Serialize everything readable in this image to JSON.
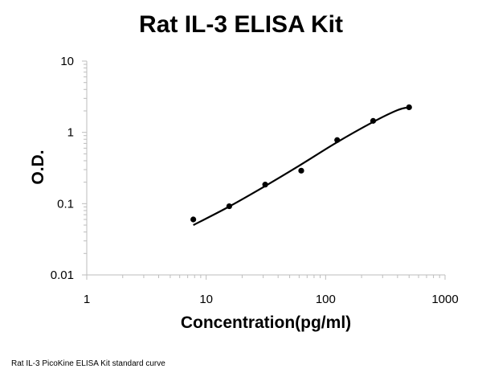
{
  "chart_data": {
    "type": "scatter",
    "title": "Rat IL-3 ELISA Kit",
    "xlabel": "Concentration(pg/ml)",
    "ylabel": "O.D.",
    "xscale": "log",
    "yscale": "log",
    "xlim": [
      1,
      1000
    ],
    "ylim": [
      0.01,
      10
    ],
    "xticks": [
      "1",
      "10",
      "100",
      "1000"
    ],
    "yticks": [
      "10",
      "1",
      "0.1",
      "0.01"
    ],
    "grid": false,
    "legend": "none",
    "series": [
      {
        "marker": "circle",
        "color": "#000000",
        "x": [
          7.8,
          15.6,
          31.2,
          62.5,
          125,
          250,
          500
        ],
        "y": [
          0.06,
          0.092,
          0.185,
          0.29,
          0.78,
          1.45,
          2.25
        ]
      }
    ],
    "fit_curve": {
      "type": "line",
      "color": "#000000",
      "x": [
        7.8,
        15,
        30,
        60,
        120,
        250,
        400,
        500
      ],
      "y": [
        0.05,
        0.088,
        0.17,
        0.34,
        0.7,
        1.4,
        2.05,
        2.25
      ]
    }
  },
  "caption": "Rat IL-3 PicoKine ELISA Kit standard curve"
}
